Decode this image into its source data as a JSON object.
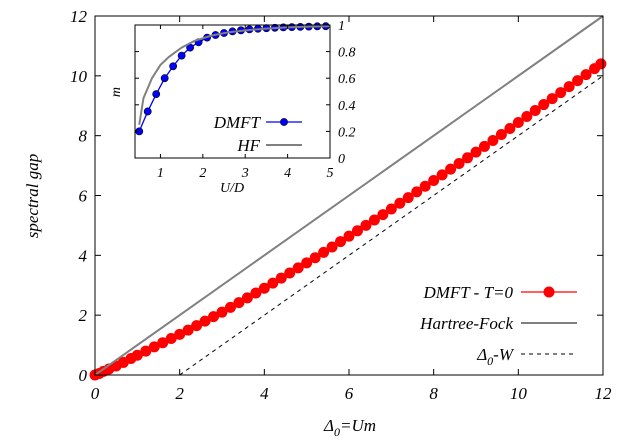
{
  "chart_data": [
    {
      "type": "line",
      "xlabel": "Δ0=Um",
      "xlabel_main": "Δ",
      "xlabel_sub": "0",
      "xlabel_rest": "=Um",
      "ylabel": "spectral gap",
      "xlim": [
        0,
        12
      ],
      "ylim": [
        0,
        12
      ],
      "xticks": [
        0,
        2,
        4,
        6,
        8,
        10,
        12
      ],
      "yticks": [
        0,
        2,
        4,
        6,
        8,
        10,
        12
      ],
      "legend_position": "bottom-right",
      "series": [
        {
          "name": "DMFT - T=0",
          "color": "#ff0000",
          "style": "line-with-circles",
          "x": [
            0.0,
            0.1,
            0.2,
            0.33,
            0.5,
            0.67,
            0.85,
            1.0,
            1.2,
            1.4,
            1.6,
            1.8,
            2.0,
            2.2,
            2.4,
            2.6,
            2.8,
            3.0,
            3.2,
            3.4,
            3.6,
            3.8,
            4.0,
            4.2,
            4.4,
            4.6,
            4.8,
            5.0,
            5.2,
            5.4,
            5.6,
            5.8,
            6.0,
            6.2,
            6.4,
            6.6,
            6.8,
            7.0,
            7.2,
            7.4,
            7.6,
            7.8,
            8.0,
            8.2,
            8.4,
            8.6,
            8.8,
            9.0,
            9.2,
            9.4,
            9.6,
            9.8,
            10.0,
            10.2,
            10.4,
            10.6,
            10.8,
            11.0,
            11.2,
            11.4,
            11.6,
            11.8,
            11.95
          ],
          "y": [
            0.0,
            0.05,
            0.12,
            0.2,
            0.3,
            0.42,
            0.55,
            0.66,
            0.8,
            0.94,
            1.08,
            1.22,
            1.36,
            1.5,
            1.65,
            1.8,
            1.95,
            2.1,
            2.26,
            2.42,
            2.58,
            2.74,
            2.9,
            3.07,
            3.24,
            3.41,
            3.58,
            3.75,
            3.92,
            4.1,
            4.28,
            4.46,
            4.64,
            4.82,
            5.0,
            5.18,
            5.36,
            5.55,
            5.74,
            5.93,
            6.12,
            6.31,
            6.5,
            6.69,
            6.88,
            7.07,
            7.26,
            7.45,
            7.64,
            7.84,
            8.04,
            8.24,
            8.44,
            8.64,
            8.84,
            9.04,
            9.24,
            9.44,
            9.64,
            9.84,
            10.04,
            10.24,
            10.4
          ]
        },
        {
          "name": "Hartree-Fock",
          "color": "#808080",
          "style": "solid",
          "x": [
            0,
            12
          ],
          "y": [
            0,
            12
          ]
        },
        {
          "name": "Δ0-W",
          "name_main": "Δ",
          "name_sub": "0",
          "name_rest": "-W",
          "color": "#000000",
          "style": "dashed",
          "x": [
            2,
            12
          ],
          "y": [
            0,
            10
          ]
        }
      ]
    },
    {
      "type": "line",
      "inset": true,
      "xlabel": "U/D",
      "ylabel": "m",
      "xlim": [
        0.4,
        5
      ],
      "ylim": [
        0,
        1
      ],
      "xticks": [
        1,
        2,
        3,
        4,
        5
      ],
      "yticks": [
        0,
        0.2,
        0.4,
        0.6,
        0.8,
        1
      ],
      "legend_position": "bottom-right",
      "series": [
        {
          "name": "DMFT",
          "color": "#0000ff",
          "style": "line-with-circles",
          "x": [
            0.5,
            0.7,
            0.9,
            1.1,
            1.3,
            1.5,
            1.7,
            1.9,
            2.1,
            2.3,
            2.5,
            2.7,
            2.9,
            3.1,
            3.3,
            3.5,
            3.7,
            3.9,
            4.1,
            4.3,
            4.5,
            4.7,
            4.9
          ],
          "y": [
            0.2,
            0.35,
            0.48,
            0.6,
            0.69,
            0.77,
            0.83,
            0.87,
            0.905,
            0.925,
            0.94,
            0.952,
            0.96,
            0.967,
            0.972,
            0.976,
            0.979,
            0.982,
            0.984,
            0.986,
            0.988,
            0.99,
            0.991
          ]
        },
        {
          "name": "HF",
          "color": "#808080",
          "style": "solid",
          "x": [
            0.5,
            0.6,
            0.8,
            1.0,
            1.2,
            1.5,
            1.8,
            2.2,
            2.6,
            3.0,
            3.5,
            4.0,
            4.5,
            5.0
          ],
          "y": [
            0.25,
            0.45,
            0.6,
            0.7,
            0.76,
            0.83,
            0.88,
            0.92,
            0.945,
            0.96,
            0.973,
            0.982,
            0.988,
            0.992
          ]
        }
      ]
    }
  ]
}
